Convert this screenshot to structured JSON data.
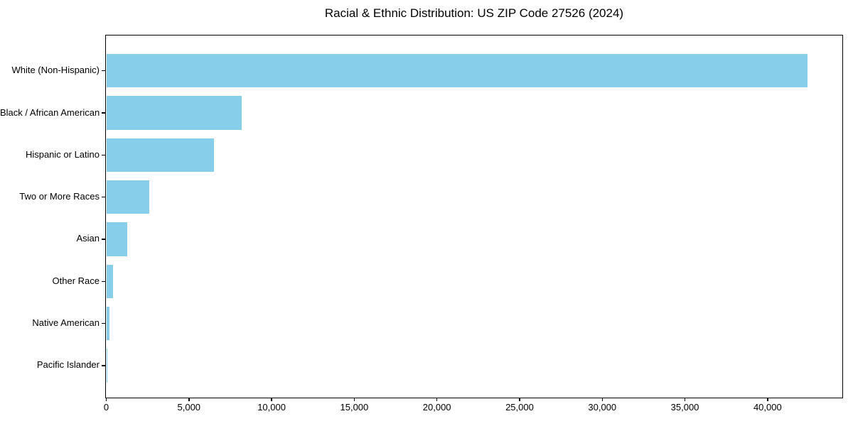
{
  "page": {
    "background_color": "#ffffff"
  },
  "chart_data": {
    "type": "bar",
    "orientation": "horizontal",
    "title": "Racial & Ethnic Distribution: US ZIP Code 27526 (2024)",
    "categories": [
      "White (Non-Hispanic)",
      "Black / African American",
      "Hispanic or Latino",
      "Two or More Races",
      "Asian",
      "Other Race",
      "Native American",
      "Pacific Islander"
    ],
    "values": [
      42400,
      8200,
      6500,
      2600,
      1250,
      390,
      175,
      20
    ],
    "xlabel": "",
    "ylabel": "",
    "xlim": [
      0,
      44500
    ],
    "x_ticks": [
      0,
      5000,
      10000,
      15000,
      20000,
      25000,
      30000,
      35000,
      40000
    ],
    "x_tick_labels": [
      "0",
      "5,000",
      "10,000",
      "15,000",
      "20,000",
      "25,000",
      "30,000",
      "35,000",
      "40,000"
    ],
    "bar_color": "#87CEEB",
    "axis_color": "#000000",
    "text_color": "#000000",
    "grid": false,
    "legend_position": "none",
    "order": "descending"
  }
}
